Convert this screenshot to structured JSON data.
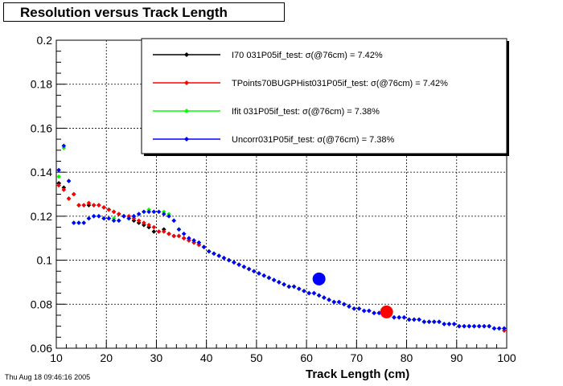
{
  "title": "Resolution versus Track Length",
  "timestamp": "Thu Aug 18 09:46:16 2005",
  "chart_data": {
    "type": "scatter",
    "title": "Resolution versus Track Length",
    "xlabel": "Track Length (cm)",
    "ylabel": "",
    "xlim": [
      10,
      100
    ],
    "ylim": [
      0.06,
      0.2
    ],
    "xticks": [
      10,
      20,
      30,
      40,
      50,
      60,
      70,
      80,
      90,
      100
    ],
    "yticks": [
      0.06,
      0.08,
      0.1,
      0.12,
      0.14,
      0.16,
      0.18,
      0.2
    ],
    "xtick_labels": [
      "10",
      "20",
      "30",
      "40",
      "50",
      "60",
      "70",
      "80",
      "90",
      "100"
    ],
    "ytick_labels": [
      "0.06",
      "0.08",
      "0.1",
      "0.12",
      "0.14",
      "0.16",
      "0.18",
      "0.2"
    ],
    "grid": true,
    "legend_position": "top-right",
    "series": [
      {
        "name": "I70  031P05if_test:  σ(@76cm) =  7.42%",
        "color": "#000000",
        "x": [
          10.5,
          11.5,
          12.5,
          13.5,
          14.5,
          15.5,
          16.5,
          17.5,
          18.5,
          19.5,
          20.5,
          21.5,
          22.5,
          23.5,
          24.5,
          25.5,
          26.5,
          27.5,
          28.5,
          29.5,
          30.5,
          31.5,
          32.5,
          33.5,
          34.5,
          35.5,
          36.5,
          37.5,
          38.5,
          39.5,
          40.5,
          41.5,
          42.5,
          43.5,
          44.5,
          45.5,
          46.5,
          47.5,
          48.5,
          49.5,
          50.5,
          51.5,
          52.5,
          53.5,
          54.5,
          55.5,
          56.5,
          57.5,
          58.5,
          59.5,
          60.5,
          61.5,
          62.5,
          63.5,
          64.5,
          65.5,
          66.5,
          67.5,
          68.5,
          69.5,
          70.5,
          71.5,
          72.5,
          73.5,
          74.5,
          75.5,
          76.5,
          77.5,
          78.5,
          79.5,
          80.5,
          81.5,
          82.5,
          83.5,
          84.5,
          85.5,
          86.5,
          87.5,
          88.5,
          89.5,
          90.5,
          91.5,
          92.5,
          93.5,
          94.5,
          95.5,
          96.5,
          97.5,
          98.5,
          99.5
        ],
        "y": [
          0.135,
          0.133,
          0.128,
          0.13,
          0.125,
          0.125,
          0.125,
          0.125,
          0.125,
          0.124,
          0.123,
          0.122,
          0.121,
          0.12,
          0.119,
          0.118,
          0.117,
          0.116,
          0.115,
          0.113,
          0.113,
          0.114,
          0.112,
          0.111,
          0.111,
          0.11,
          0.109,
          0.108,
          0.107,
          0.106,
          0.104,
          0.103,
          0.102,
          0.101,
          0.1,
          0.099,
          0.098,
          0.097,
          0.096,
          0.095,
          0.094,
          0.093,
          0.092,
          0.091,
          0.09,
          0.089,
          0.088,
          0.088,
          0.087,
          0.086,
          0.085,
          0.085,
          0.084,
          0.083,
          0.082,
          0.081,
          0.081,
          0.08,
          0.079,
          0.078,
          0.078,
          0.077,
          0.077,
          0.076,
          0.076,
          0.075,
          0.075,
          0.074,
          0.074,
          0.074,
          0.073,
          0.073,
          0.073,
          0.072,
          0.072,
          0.072,
          0.072,
          0.071,
          0.071,
          0.071,
          0.07,
          0.07,
          0.07,
          0.07,
          0.07,
          0.07,
          0.07,
          0.069,
          0.069,
          0.069
        ]
      },
      {
        "name": "TPoints70BUGPHist031P05if_test:   σ(@76cm) =  7.42%",
        "color": "#ff0000",
        "x": [
          10.5,
          11.5,
          12.5,
          13.5,
          14.5,
          15.5,
          16.5,
          17.5,
          18.5,
          19.5,
          20.5,
          21.5,
          22.5,
          23.5,
          24.5,
          25.5,
          26.5,
          27.5,
          28.5,
          29.5,
          30.5,
          31.5,
          32.5,
          33.5,
          34.5,
          35.5,
          36.5,
          37.5,
          38.5,
          39.5,
          40.5,
          41.5,
          42.5,
          43.5,
          44.5,
          45.5,
          46.5,
          47.5,
          48.5,
          49.5,
          50.5,
          51.5,
          52.5,
          53.5,
          54.5,
          55.5,
          56.5,
          57.5,
          58.5,
          59.5,
          60.5,
          61.5,
          62.5,
          63.5,
          64.5,
          65.5,
          66.5,
          67.5,
          68.5,
          69.5,
          70.5,
          71.5,
          72.5,
          73.5,
          74.5,
          75.5,
          76.5,
          77.5,
          78.5,
          79.5,
          80.5,
          81.5,
          82.5,
          83.5,
          84.5,
          85.5,
          86.5,
          87.5,
          88.5,
          89.5,
          90.5,
          91.5,
          92.5,
          93.5,
          94.5,
          95.5,
          96.5,
          97.5,
          98.5,
          99.5
        ],
        "y": [
          0.134,
          0.132,
          0.128,
          0.13,
          0.125,
          0.125,
          0.126,
          0.125,
          0.125,
          0.124,
          0.123,
          0.122,
          0.121,
          0.12,
          0.12,
          0.119,
          0.118,
          0.117,
          0.116,
          0.115,
          0.113,
          0.113,
          0.112,
          0.111,
          0.111,
          0.11,
          0.109,
          0.108,
          0.107,
          0.106,
          0.104,
          0.103,
          0.102,
          0.101,
          0.1,
          0.099,
          0.098,
          0.097,
          0.096,
          0.095,
          0.094,
          0.093,
          0.092,
          0.091,
          0.09,
          0.089,
          0.088,
          0.088,
          0.087,
          0.086,
          0.085,
          0.085,
          0.084,
          0.083,
          0.082,
          0.081,
          0.081,
          0.08,
          0.079,
          0.078,
          0.078,
          0.077,
          0.077,
          0.076,
          0.076,
          0.075,
          0.075,
          0.074,
          0.074,
          0.074,
          0.073,
          0.073,
          0.073,
          0.072,
          0.072,
          0.072,
          0.072,
          0.071,
          0.071,
          0.071,
          0.07,
          0.07,
          0.07,
          0.07,
          0.07,
          0.07,
          0.07,
          0.069,
          0.069,
          0.068
        ]
      },
      {
        "name": "Ifit  031P05if_test:  σ(@76cm) =  7.38%",
        "color": "#00ff00",
        "x": [
          10.5,
          11.5,
          12.5,
          13.5,
          14.5,
          15.5,
          16.5,
          17.5,
          18.5,
          19.5,
          20.5,
          21.5,
          22.5,
          23.5,
          24.5,
          25.5,
          26.5,
          27.5,
          28.5,
          29.5,
          30.5,
          31.5,
          32.5,
          33.5,
          34.5,
          35.5,
          36.5,
          37.5,
          38.5,
          39.5,
          40.5,
          41.5,
          42.5,
          43.5,
          44.5,
          45.5,
          46.5,
          47.5,
          48.5,
          49.5,
          50.5,
          51.5,
          52.5,
          53.5,
          54.5,
          55.5,
          56.5,
          57.5,
          58.5,
          59.5,
          60.5,
          61.5,
          62.5,
          63.5,
          64.5,
          65.5,
          66.5,
          67.5,
          68.5,
          69.5,
          70.5,
          71.5,
          72.5,
          73.5,
          74.5,
          75.5,
          76.5,
          77.5,
          78.5,
          79.5,
          80.5,
          81.5,
          82.5,
          83.5,
          84.5,
          85.5,
          86.5,
          87.5,
          88.5,
          89.5,
          90.5,
          91.5,
          92.5,
          93.5,
          94.5,
          95.5,
          96.5,
          97.5,
          98.5,
          99.5
        ],
        "y": [
          0.138,
          0.151,
          0.136,
          0.117,
          0.117,
          0.117,
          0.119,
          0.12,
          0.12,
          0.119,
          0.119,
          0.119,
          0.118,
          0.12,
          0.119,
          0.12,
          0.121,
          0.122,
          0.123,
          0.122,
          0.122,
          0.122,
          0.121,
          0.118,
          0.114,
          0.112,
          0.11,
          0.109,
          0.108,
          0.106,
          0.104,
          0.103,
          0.102,
          0.101,
          0.1,
          0.099,
          0.098,
          0.097,
          0.096,
          0.095,
          0.094,
          0.093,
          0.092,
          0.091,
          0.09,
          0.089,
          0.088,
          0.088,
          0.087,
          0.086,
          0.085,
          0.085,
          0.084,
          0.083,
          0.082,
          0.081,
          0.081,
          0.08,
          0.079,
          0.078,
          0.078,
          0.077,
          0.077,
          0.076,
          0.076,
          0.075,
          0.075,
          0.074,
          0.074,
          0.074,
          0.073,
          0.073,
          0.073,
          0.072,
          0.072,
          0.072,
          0.072,
          0.071,
          0.071,
          0.071,
          0.07,
          0.07,
          0.07,
          0.07,
          0.07,
          0.07,
          0.07,
          0.069,
          0.069,
          0.069
        ]
      },
      {
        "name": "Uncorr031P05if_test:  σ(@76cm) =  7.38%",
        "color": "#0000ff",
        "x": [
          10.5,
          11.5,
          12.5,
          13.5,
          14.5,
          15.5,
          16.5,
          17.5,
          18.5,
          19.5,
          20.5,
          21.5,
          22.5,
          23.5,
          24.5,
          25.5,
          26.5,
          27.5,
          28.5,
          29.5,
          30.5,
          31.5,
          32.5,
          33.5,
          34.5,
          35.5,
          36.5,
          37.5,
          38.5,
          39.5,
          40.5,
          41.5,
          42.5,
          43.5,
          44.5,
          45.5,
          46.5,
          47.5,
          48.5,
          49.5,
          50.5,
          51.5,
          52.5,
          53.5,
          54.5,
          55.5,
          56.5,
          57.5,
          58.5,
          59.5,
          60.5,
          61.5,
          62.5,
          63.5,
          64.5,
          65.5,
          66.5,
          67.5,
          68.5,
          69.5,
          70.5,
          71.5,
          72.5,
          73.5,
          74.5,
          75.5,
          76.5,
          77.5,
          78.5,
          79.5,
          80.5,
          81.5,
          82.5,
          83.5,
          84.5,
          85.5,
          86.5,
          87.5,
          88.5,
          89.5,
          90.5,
          91.5,
          92.5,
          93.5,
          94.5,
          95.5,
          96.5,
          97.5,
          98.5,
          99.5
        ],
        "y": [
          0.141,
          0.152,
          0.136,
          0.117,
          0.117,
          0.117,
          0.119,
          0.12,
          0.12,
          0.119,
          0.119,
          0.118,
          0.118,
          0.12,
          0.119,
          0.12,
          0.121,
          0.122,
          0.122,
          0.122,
          0.122,
          0.121,
          0.12,
          0.118,
          0.114,
          0.112,
          0.11,
          0.109,
          0.108,
          0.106,
          0.104,
          0.103,
          0.102,
          0.101,
          0.1,
          0.099,
          0.098,
          0.097,
          0.096,
          0.095,
          0.094,
          0.093,
          0.092,
          0.091,
          0.09,
          0.089,
          0.088,
          0.088,
          0.087,
          0.086,
          0.085,
          0.085,
          0.084,
          0.083,
          0.082,
          0.081,
          0.081,
          0.08,
          0.079,
          0.078,
          0.078,
          0.077,
          0.077,
          0.076,
          0.076,
          0.075,
          0.075,
          0.074,
          0.074,
          0.074,
          0.073,
          0.073,
          0.073,
          0.072,
          0.072,
          0.072,
          0.072,
          0.071,
          0.071,
          0.071,
          0.07,
          0.07,
          0.07,
          0.07,
          0.07,
          0.07,
          0.07,
          0.069,
          0.069,
          0.069
        ]
      }
    ],
    "highlight_points": [
      {
        "x": 62.5,
        "y": 0.0915,
        "color": "#0000ff"
      },
      {
        "x": 76.0,
        "y": 0.0765,
        "color": "#ff0000"
      }
    ]
  }
}
